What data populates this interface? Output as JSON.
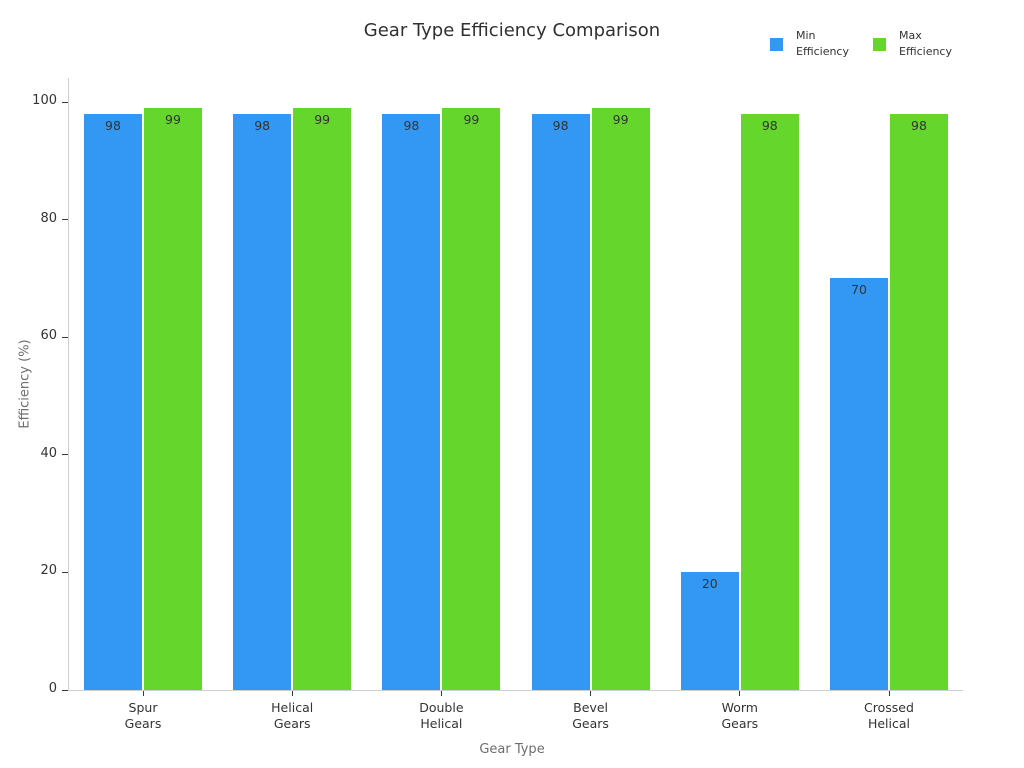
{
  "chart_data": {
    "type": "bar",
    "title": "Gear Type Efficiency Comparison",
    "xlabel": "Gear Type",
    "ylabel": "Efficiency (%)",
    "ylim": [
      0,
      104
    ],
    "yticks": [
      0,
      20,
      40,
      60,
      80,
      100
    ],
    "grid": false,
    "legend_position": "top-right",
    "value_labels": true,
    "categories": [
      "Spur\nGears",
      "Helical\nGears",
      "Double\nHelical",
      "Bevel\nGears",
      "Worm\nGears",
      "Crossed\nHelical"
    ],
    "series": [
      {
        "name": "Min Efficiency",
        "color": "#3398F3",
        "values": [
          98,
          98,
          98,
          98,
          20,
          70
        ]
      },
      {
        "name": "Max Efficiency",
        "color": "#64D62C",
        "values": [
          99,
          99,
          99,
          99,
          98,
          98
        ]
      }
    ]
  },
  "legend": {
    "items": [
      {
        "label": "Min\nEfficiency",
        "color": "#3398F3"
      },
      {
        "label": "Max\nEfficiency",
        "color": "#64D62C"
      }
    ]
  }
}
